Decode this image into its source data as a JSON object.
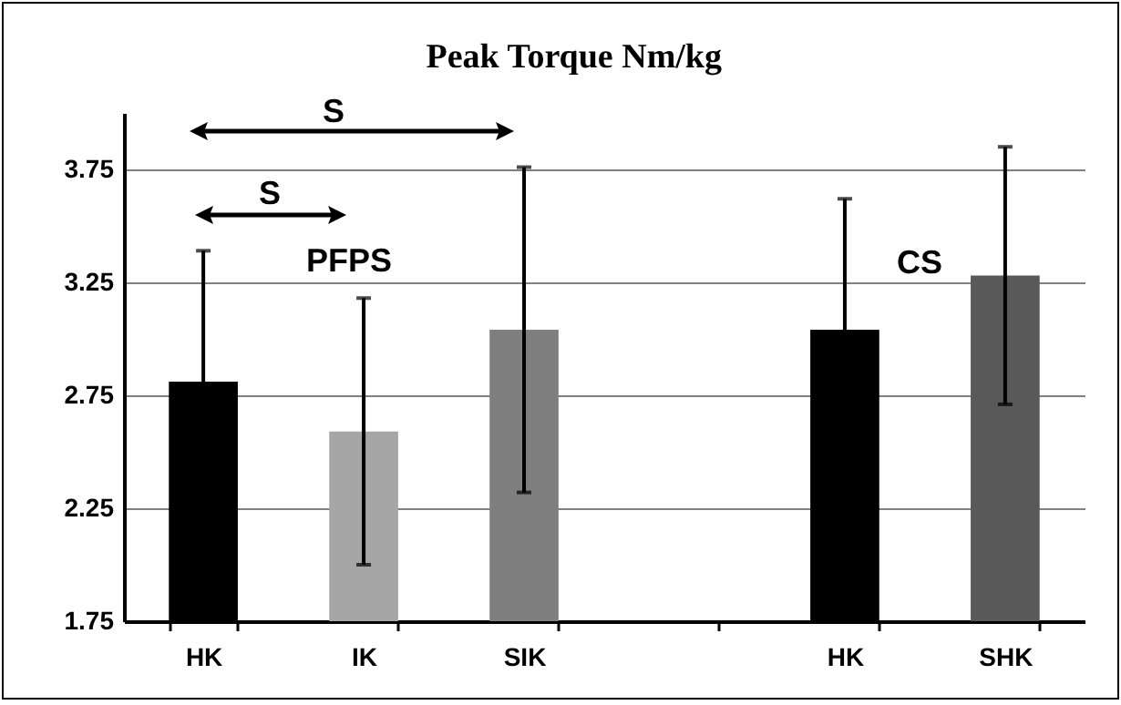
{
  "chart_data": {
    "type": "bar",
    "title": "Peak Torque Nm/kg",
    "categories": [
      "HK",
      "IK",
      "SIK",
      null,
      "HK",
      "SHK"
    ],
    "values": [
      2.81,
      2.59,
      3.04,
      null,
      3.04,
      3.28
    ],
    "errors": [
      0.58,
      0.59,
      0.72,
      null,
      0.58,
      0.57
    ],
    "colors": [
      "#000000",
      "#a6a6a6",
      "#7f7f7f",
      null,
      "#000000",
      "#595959"
    ],
    "ylim": [
      1.75,
      4.0
    ],
    "yticks": [
      1.75,
      2.25,
      2.75,
      3.25,
      3.75
    ],
    "grid": "y",
    "annotations": [
      "S",
      "S",
      "PFPS",
      "CS"
    ]
  }
}
